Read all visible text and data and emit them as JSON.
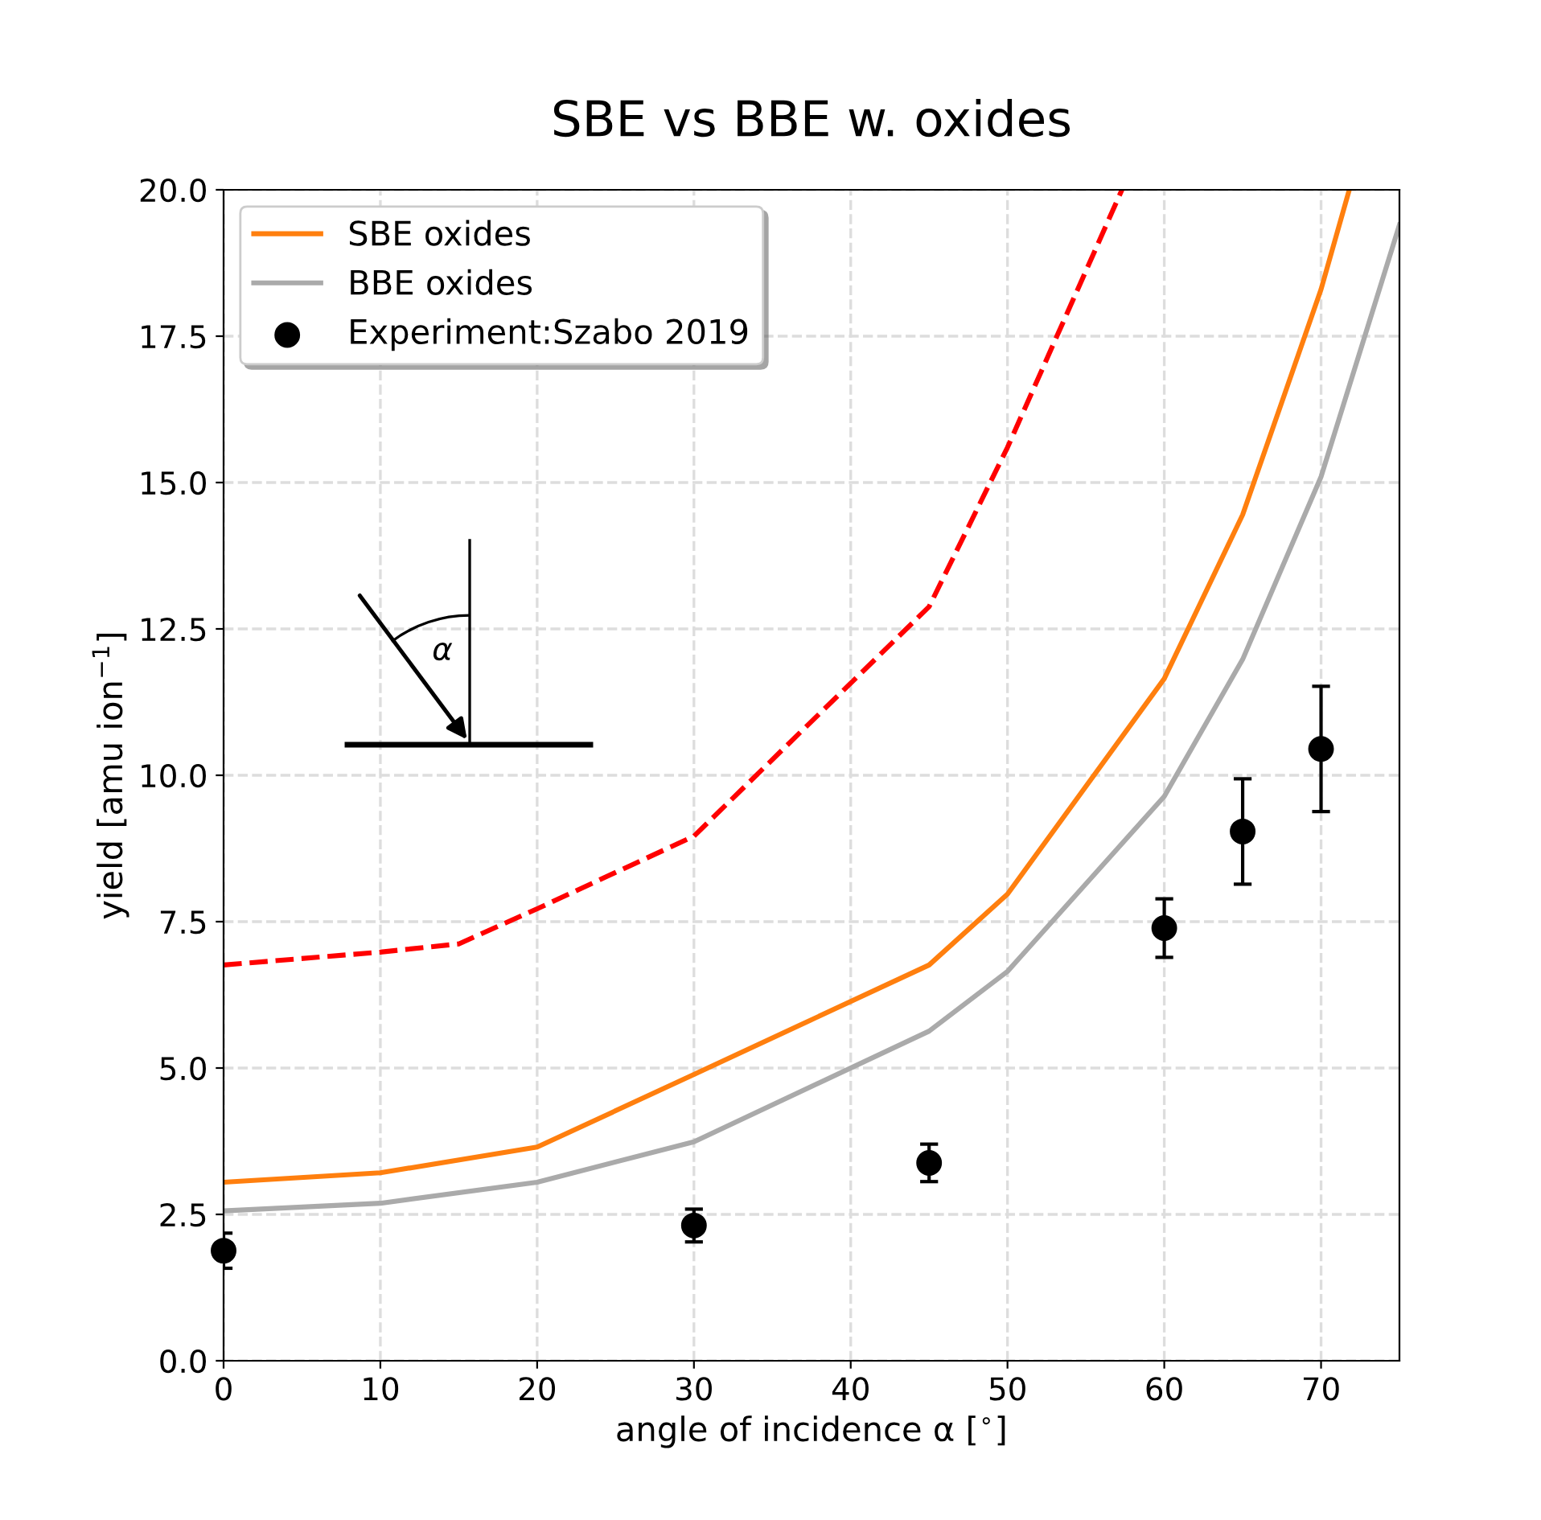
{
  "chart_data": {
    "type": "line",
    "title": "SBE vs BBE w. oxides",
    "xlabel": "angle of incidence α [$^{∘}$]",
    "ylabel": "yield [amu ion$^{−1}$]",
    "xlim": [
      0,
      75
    ],
    "xticks": [
      0,
      10,
      20,
      30,
      40,
      50,
      60,
      70
    ],
    "ylim": [
      0,
      20
    ],
    "yticks": [
      {
        "value": 0,
        "label": "0.0"
      },
      2.5,
      {
        "value": 5,
        "label": "5.0"
      },
      7.5,
      {
        "value": 10,
        "label": "10.0"
      },
      12.5,
      {
        "value": 15,
        "label": "15.0"
      },
      17.5,
      {
        "value": 20,
        "label": "20.0"
      }
    ],
    "grid": true,
    "legend": "top left",
    "annotations": [
      "α"
    ],
    "series": [
      {
        "color": "#ff0000",
        "line_style": "dashed",
        "marker": "none",
        "x": [
          0,
          10,
          15,
          20,
          30,
          45,
          50,
          57.3
        ],
        "values": [
          6.76,
          6.98,
          7.12,
          7.72,
          8.96,
          12.88,
          15.6,
          20.0
        ]
      },
      {
        "name": "SBE oxides",
        "color": "#ff7f0e",
        "line_style": "solid",
        "marker": "none",
        "x": [
          0,
          10,
          20,
          30,
          45,
          50,
          60,
          65,
          70,
          71.8
        ],
        "values": [
          3.05,
          3.21,
          3.65,
          4.89,
          6.76,
          7.97,
          11.65,
          14.45,
          18.3,
          20.0
        ]
      },
      {
        "name": "BBE oxides",
        "color": "#aaaaaa",
        "line_style": "solid",
        "marker": "none",
        "x": [
          0,
          10,
          20,
          30,
          45,
          50,
          60,
          65,
          70,
          75
        ],
        "values": [
          2.56,
          2.69,
          3.05,
          3.74,
          5.63,
          6.65,
          9.64,
          11.98,
          15.1,
          19.4
        ]
      },
      {
        "name": "Experiment:Szabo 2019",
        "type": "scatter",
        "color": "#000000",
        "marker": "circle",
        "x": [
          0,
          30,
          45,
          60,
          65,
          70
        ],
        "values": [
          1.88,
          2.31,
          3.38,
          7.39,
          9.04,
          10.45
        ],
        "errors": [
          0.3,
          0.28,
          0.32,
          0.5,
          0.9,
          1.07
        ]
      }
    ]
  }
}
